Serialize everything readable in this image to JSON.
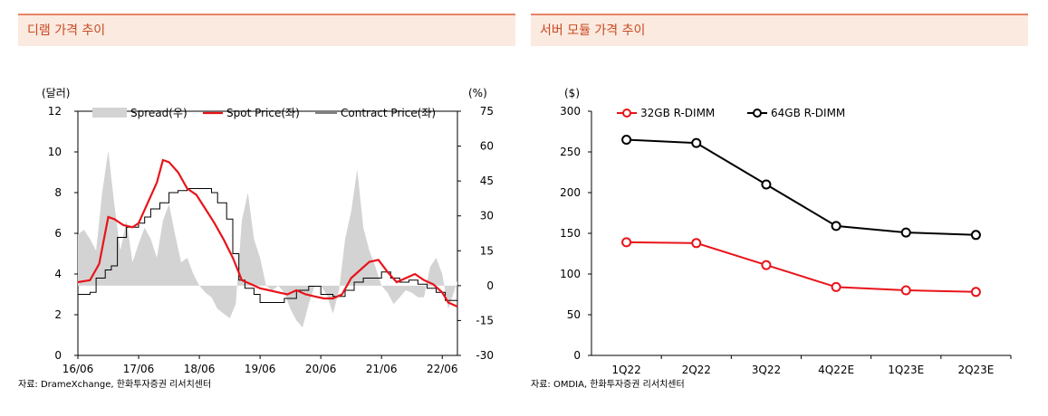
{
  "left": {
    "title": "디램 가격 추이",
    "source": "자료: DrameXchange, 한화투자증권 리서치센터",
    "chart_data": {
      "type": "line",
      "ylabel_left": "(달러)",
      "ylabel_right": "(%)",
      "ylim_left": [
        0,
        12
      ],
      "ylim_right": [
        -30,
        75
      ],
      "yticks_left": [
        "0",
        "2",
        "4",
        "6",
        "8",
        "10",
        "12"
      ],
      "yticks_right": [
        "-30",
        "-15",
        "0",
        "15",
        "30",
        "45",
        "60",
        "75"
      ],
      "xticks": [
        "16/06",
        "17/06",
        "18/06",
        "19/06",
        "20/06",
        "21/06",
        "22/06"
      ],
      "legend": [
        "Spread(우)",
        "Spot Price(좌)",
        "Contract Price(좌)"
      ],
      "spread_series": {
        "name": "Spread(우)",
        "t": [
          0,
          0.1,
          0.2,
          0.3,
          0.4,
          0.5,
          0.6,
          0.7,
          0.8,
          0.9,
          1.0,
          1.1,
          1.2,
          1.3,
          1.4,
          1.5,
          1.6,
          1.7,
          1.8,
          1.9,
          2.0,
          2.1,
          2.2,
          2.3,
          2.4,
          2.5,
          2.6,
          2.7,
          2.8,
          2.9,
          3.0,
          3.1,
          3.2,
          3.3,
          3.4,
          3.5,
          3.6,
          3.7,
          3.8,
          3.9,
          4.0,
          4.1,
          4.2,
          4.3,
          4.4,
          4.5,
          4.6,
          4.7,
          4.8,
          4.9,
          5.0,
          5.1,
          5.2,
          5.3,
          5.4,
          5.5,
          5.6,
          5.7,
          5.8,
          5.9,
          6.0,
          6.1,
          6.25
        ],
        "values": [
          22,
          24,
          20,
          15,
          40,
          58,
          35,
          15,
          28,
          10,
          18,
          25,
          20,
          12,
          28,
          35,
          22,
          10,
          12,
          5,
          0,
          -3,
          -5,
          -10,
          -12,
          -14,
          -8,
          28,
          40,
          20,
          12,
          0,
          -2,
          0,
          -3,
          -10,
          -15,
          -18,
          -8,
          0,
          0,
          -4,
          -12,
          -2,
          20,
          32,
          50,
          25,
          15,
          8,
          0,
          -3,
          -8,
          -5,
          -2,
          -3,
          -5,
          -5,
          8,
          12,
          5,
          -10,
          2
        ]
      },
      "spot_series": {
        "name": "Spot Price(좌)",
        "t": [
          0,
          0.2,
          0.35,
          0.5,
          0.6,
          0.75,
          0.9,
          1.0,
          1.15,
          1.3,
          1.4,
          1.5,
          1.65,
          1.8,
          1.95,
          2.1,
          2.25,
          2.4,
          2.55,
          2.7,
          2.85,
          3.0,
          3.15,
          3.3,
          3.45,
          3.6,
          3.75,
          3.9,
          4.05,
          4.2,
          4.35,
          4.5,
          4.65,
          4.8,
          4.95,
          5.1,
          5.25,
          5.4,
          5.55,
          5.7,
          5.85,
          6.0,
          6.1,
          6.25
        ],
        "values": [
          3.6,
          3.7,
          4.5,
          6.8,
          6.7,
          6.4,
          6.3,
          6.5,
          7.5,
          8.5,
          9.6,
          9.5,
          9.0,
          8.2,
          7.9,
          7.2,
          6.5,
          5.7,
          4.8,
          3.7,
          3.5,
          3.3,
          3.2,
          3.1,
          3.0,
          3.2,
          3.0,
          2.9,
          2.8,
          2.8,
          3.0,
          3.8,
          4.2,
          4.6,
          4.7,
          4.1,
          3.6,
          3.8,
          4.0,
          3.7,
          3.5,
          3.1,
          2.6,
          2.4
        ]
      },
      "contract_series": {
        "name": "Contract Price(좌)",
        "t": [
          0,
          0.2,
          0.3,
          0.45,
          0.55,
          0.65,
          0.8,
          0.9,
          1.0,
          1.1,
          1.2,
          1.35,
          1.5,
          1.65,
          1.8,
          1.95,
          2.1,
          2.2,
          2.3,
          2.45,
          2.55,
          2.65,
          2.75,
          2.9,
          3.0,
          3.2,
          3.4,
          3.6,
          3.8,
          4.0,
          4.2,
          4.4,
          4.55,
          4.7,
          4.85,
          5.0,
          5.15,
          5.3,
          5.45,
          5.6,
          5.75,
          5.9,
          6.05,
          6.25
        ],
        "values": [
          3.0,
          3.1,
          3.8,
          4.2,
          4.4,
          5.8,
          6.3,
          6.3,
          6.5,
          6.8,
          7.2,
          7.5,
          8.0,
          8.1,
          8.2,
          8.2,
          8.2,
          8.0,
          7.5,
          6.7,
          5.0,
          3.7,
          3.3,
          3.0,
          2.6,
          2.6,
          2.8,
          3.2,
          3.4,
          3.0,
          2.9,
          3.2,
          3.6,
          3.8,
          3.8,
          4.1,
          3.8,
          3.6,
          3.7,
          3.5,
          3.3,
          3.1,
          2.7,
          2.4
        ]
      }
    }
  },
  "right": {
    "title": "서버 모듈 가격 추이",
    "source": "자료: OMDIA, 한화투자증권 리서치센터",
    "chart_data": {
      "type": "line",
      "ylabel": "($)",
      "ylim": [
        0,
        300
      ],
      "yticks": [
        "0",
        "50",
        "100",
        "150",
        "200",
        "250",
        "300"
      ],
      "categories": [
        "1Q22",
        "2Q22",
        "3Q22",
        "4Q22E",
        "1Q23E",
        "2Q23E"
      ],
      "series": [
        {
          "name": "32GB R-DIMM",
          "values": [
            139,
            138,
            111,
            84,
            80,
            78
          ]
        },
        {
          "name": "64GB R-DIMM",
          "values": [
            265,
            261,
            210,
            159,
            151,
            148
          ]
        }
      ]
    }
  },
  "colors": {
    "red": "#e8141b",
    "black": "#000000",
    "spread": "#d3d3d3",
    "accent": "#c84a25",
    "titlebar": "#fbeadf"
  }
}
